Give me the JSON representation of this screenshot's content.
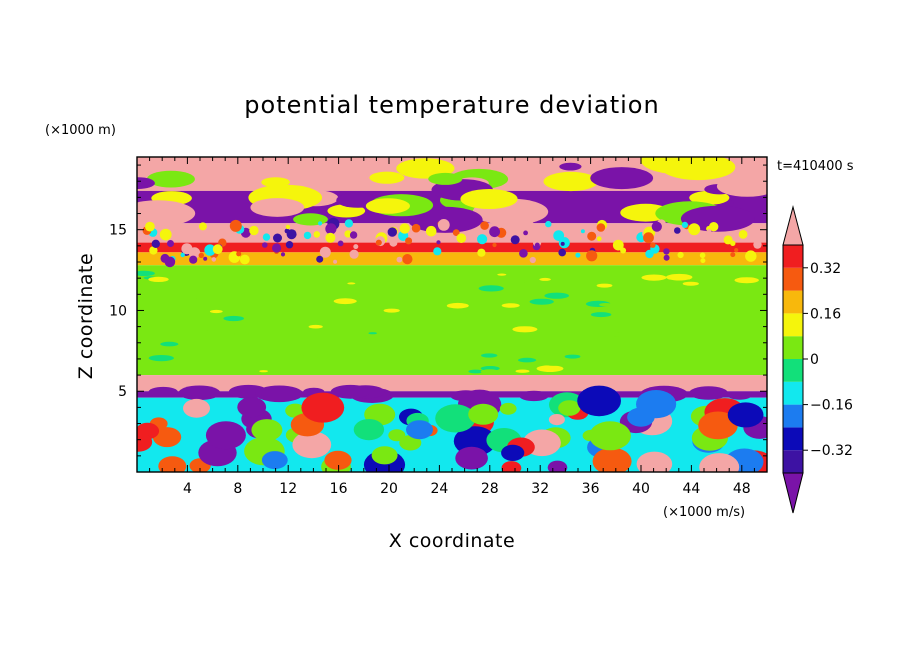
{
  "chart_data": {
    "type": "heatmap",
    "title": "potential temperature deviation",
    "xlabel": "X coordinate",
    "ylabel": "Z coordinate",
    "x_unit": "(×1000 m/s)",
    "y_unit": "(×1000 m)",
    "time_label": "t=410400 s",
    "xlim": [
      0,
      50
    ],
    "ylim": [
      0,
      19.5
    ],
    "x_ticks": [
      4,
      8,
      12,
      16,
      20,
      24,
      28,
      32,
      36,
      40,
      44,
      48
    ],
    "y_ticks": [
      5,
      10,
      15
    ],
    "colorbar": {
      "levels": [
        -0.4,
        -0.32,
        -0.24,
        -0.16,
        -0.08,
        0,
        0.08,
        0.16,
        0.24,
        0.32,
        0.4
      ],
      "tick_labels": [
        "0.32",
        "0.16",
        "0",
        "−0.16",
        "−0.32"
      ],
      "tick_values": [
        0.32,
        0.16,
        0,
        -0.16,
        -0.32
      ],
      "colors": [
        "#7a13a8",
        "#3d12a3",
        "#0c0ab8",
        "#1c7cf0",
        "#12e8ee",
        "#12e07a",
        "#7ae812",
        "#f5f50c",
        "#f8b80c",
        "#f65a10",
        "#f01e20",
        "#f4a6a6"
      ]
    },
    "layers": [
      {
        "z": [
          17.4,
          19.5
        ],
        "value": 0.45
      },
      {
        "z": [
          15.4,
          17.4
        ],
        "value": -0.45
      },
      {
        "z": [
          14.2,
          15.4
        ],
        "value": 0.45
      },
      {
        "z": [
          13.6,
          14.2
        ],
        "value": 0.38
      },
      {
        "z": [
          12.8,
          13.6
        ],
        "value": 0.2
      },
      {
        "z": [
          6.0,
          12.8
        ],
        "value": 0.04
      },
      {
        "z": [
          5.0,
          6.0
        ],
        "value": 0.45
      },
      {
        "z": [
          4.6,
          5.0
        ],
        "value": -0.45
      },
      {
        "z": [
          0,
          4.6
        ],
        "value": -0.12
      }
    ]
  }
}
